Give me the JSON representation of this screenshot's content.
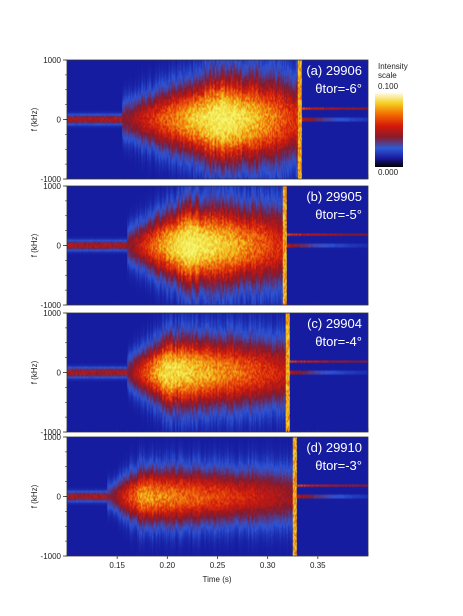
{
  "chart_data": {
    "type": "heatmap",
    "x_axis": {
      "label": "Time (s)",
      "xlim": [
        0.1,
        0.4
      ],
      "ticks": [
        0.15,
        0.2,
        0.25,
        0.3,
        0.35
      ],
      "tick_labels": [
        "0.15",
        "0.20",
        "0.25",
        "0.30",
        "0.35"
      ]
    },
    "y_axis": {
      "label": "f (kHz)",
      "ylim": [
        -1000,
        1000
      ],
      "ticks": [
        -1000,
        0,
        1000
      ],
      "tick_labels": [
        "-1000",
        "0",
        "1000"
      ]
    },
    "colorbar": {
      "title_line1": "Intensity",
      "title_line2": "scale",
      "max_label": "0.100",
      "min_label": "0.000",
      "range": [
        0.0,
        0.1
      ]
    },
    "panels": [
      {
        "id": "a",
        "label": "(a) 29906",
        "angle_label": "θtor=-6°",
        "onset_time": 0.155,
        "peak_time": 0.255,
        "end_time": 0.33,
        "peak_intensity": 0.1,
        "peak_halfwidth_khz": 650
      },
      {
        "id": "b",
        "label": "(b) 29905",
        "angle_label": "θtor=-5°",
        "onset_time": 0.16,
        "peak_time": 0.22,
        "end_time": 0.315,
        "peak_intensity": 0.1,
        "peak_halfwidth_khz": 600
      },
      {
        "id": "c",
        "label": "(c) 29904",
        "angle_label": "θtor=-4°",
        "onset_time": 0.16,
        "peak_time": 0.2,
        "end_time": 0.318,
        "peak_intensity": 0.09,
        "peak_halfwidth_khz": 520
      },
      {
        "id": "d",
        "label": "(d) 29910",
        "angle_label": "θtor=-3°",
        "onset_time": 0.14,
        "peak_time": 0.175,
        "end_time": 0.325,
        "peak_intensity": 0.07,
        "peak_halfwidth_khz": 420
      }
    ]
  }
}
